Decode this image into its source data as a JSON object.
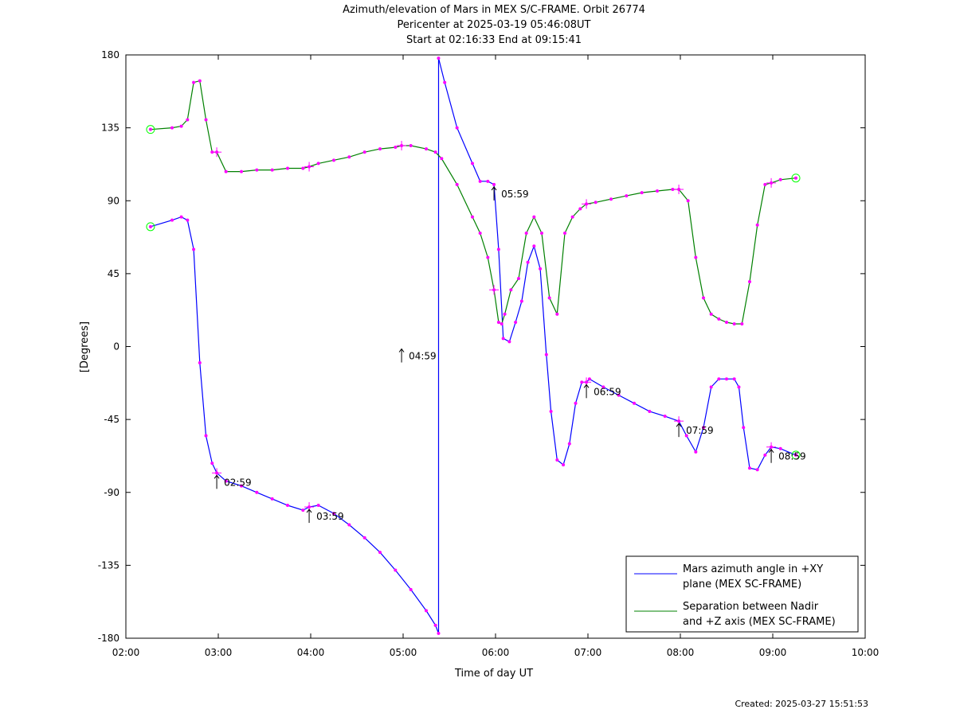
{
  "chart_data": {
    "type": "line",
    "title": "Azimuth/elevation of Mars in MEX S/C-FRAME.  Orbit 26774",
    "subtitle1": "Pericenter at 2025-03-19 05:46:08UT",
    "subtitle2": "Start at 02:16:33 End at 09:15:41",
    "xlabel": "Time of day UT",
    "ylabel": "[Degrees]",
    "xlim": [
      "02:00",
      "10:00"
    ],
    "ylim": [
      -180,
      180
    ],
    "xticks": [
      "02:00",
      "03:00",
      "04:00",
      "05:00",
      "06:00",
      "07:00",
      "08:00",
      "09:00",
      "10:00"
    ],
    "yticks": [
      "180",
      "135",
      "90",
      "45",
      "0",
      "-45",
      "-90",
      "-135",
      "-180"
    ],
    "grid": false,
    "legend_position": "bottom-right",
    "series": [
      {
        "name": "Mars azimuth angle in +XY plane (MEX SC-FRAME)",
        "color": "#0000ff",
        "x": [
          "02:16",
          "02:30",
          "02:36",
          "02:40",
          "02:44",
          "02:48",
          "02:52",
          "02:56",
          "02:59",
          "03:05",
          "03:15",
          "03:25",
          "03:35",
          "03:45",
          "03:55",
          "03:59",
          "04:05",
          "04:15",
          "04:25",
          "04:35",
          "04:45",
          "04:55",
          "05:05",
          "05:15",
          "05:21",
          "05:23",
          "05:23",
          "05:27",
          "05:35",
          "05:45",
          "05:50",
          "05:55",
          "05:59",
          "06:02",
          "06:05",
          "06:09",
          "06:13",
          "06:17",
          "06:21",
          "06:25",
          "06:29",
          "06:33",
          "06:36",
          "06:40",
          "06:44",
          "06:48",
          "06:52",
          "06:56",
          "06:59",
          "07:01",
          "07:10",
          "07:20",
          "07:30",
          "07:40",
          "07:50",
          "07:59",
          "08:04",
          "08:10",
          "08:15",
          "08:20",
          "08:25",
          "08:30",
          "08:35",
          "08:38",
          "08:41",
          "08:45",
          "08:50",
          "08:55",
          "08:59",
          "09:05",
          "09:15"
        ],
        "y": [
          74,
          78,
          80,
          78,
          60,
          -10,
          -55,
          -72,
          -78,
          -83,
          -86,
          -90,
          -94,
          -98,
          -101,
          -99,
          -98,
          -103,
          -110,
          -118,
          -127,
          -138,
          -150,
          -163,
          -172,
          -177,
          178,
          163,
          135,
          113,
          102,
          102,
          100,
          60,
          5,
          3,
          15,
          28,
          52,
          62,
          48,
          -5,
          -40,
          -70,
          -73,
          -60,
          -35,
          -22,
          -22,
          -20,
          -25,
          -30,
          -35,
          -40,
          -43,
          -46,
          -55,
          -65,
          -50,
          -25,
          -20,
          -20,
          -20,
          -25,
          -50,
          -75,
          -76,
          -67,
          -62,
          -63,
          -67
        ]
      },
      {
        "name": "Separation between Nadir and +Z axis (MEX SC-FRAME)",
        "color": "#008000",
        "x": [
          "02:16",
          "02:30",
          "02:36",
          "02:40",
          "02:44",
          "02:48",
          "02:52",
          "02:56",
          "02:59",
          "03:05",
          "03:15",
          "03:25",
          "03:35",
          "03:45",
          "03:55",
          "03:59",
          "04:05",
          "04:15",
          "04:25",
          "04:35",
          "04:45",
          "04:55",
          "04:59",
          "05:05",
          "05:15",
          "05:21",
          "05:25",
          "05:35",
          "05:45",
          "05:50",
          "05:55",
          "05:59",
          "06:02",
          "06:04",
          "06:06",
          "06:10",
          "06:15",
          "06:20",
          "06:25",
          "06:30",
          "06:35",
          "06:40",
          "06:45",
          "06:50",
          "06:55",
          "06:59",
          "07:05",
          "07:15",
          "07:25",
          "07:35",
          "07:45",
          "07:55",
          "07:59",
          "08:05",
          "08:10",
          "08:15",
          "08:20",
          "08:25",
          "08:30",
          "08:35",
          "08:40",
          "08:45",
          "08:50",
          "08:55",
          "08:59",
          "09:05",
          "09:15"
        ],
        "y": [
          134,
          135,
          136,
          140,
          163,
          164,
          140,
          120,
          120,
          108,
          108,
          109,
          109,
          110,
          110,
          111,
          113,
          115,
          117,
          120,
          122,
          123,
          124,
          124,
          122,
          120,
          116,
          100,
          80,
          70,
          55,
          35,
          15,
          14,
          20,
          35,
          42,
          70,
          80,
          70,
          30,
          20,
          70,
          80,
          85,
          88,
          89,
          91,
          93,
          95,
          96,
          97,
          97,
          90,
          55,
          30,
          20,
          17,
          15,
          14,
          14,
          40,
          75,
          100,
          101,
          103,
          104
        ]
      }
    ],
    "time_annotations": [
      "02:59",
      "03:59",
      "04:59",
      "05:59",
      "06:59",
      "07:59",
      "08:59"
    ],
    "footer": "Created: 2025-03-27 15:51:53"
  }
}
